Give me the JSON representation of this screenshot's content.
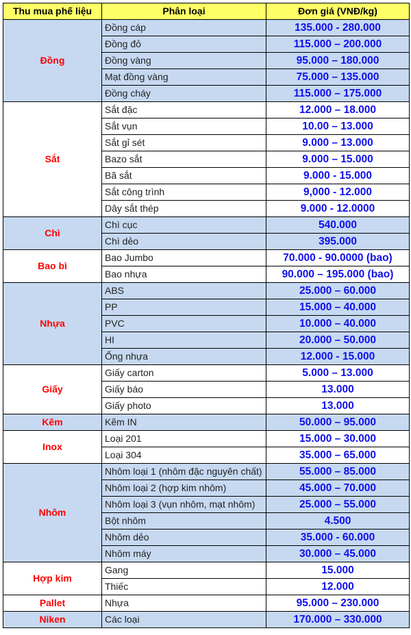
{
  "header": {
    "col1": "Thu mua phế liệu",
    "col2": "Phân loại",
    "col3": "Đơn giá (VNĐ/kg)"
  },
  "colors": {
    "header_bg": "#ffff66",
    "blue_row_bg": "#c6d9f1",
    "group_text": "#ff0000",
    "price_text": "#1010ee"
  },
  "groups": [
    {
      "name": "Đồng",
      "shaded": true,
      "items": [
        {
          "kind": "Đồng cáp",
          "price": "135.000 - 280.000"
        },
        {
          "kind": "Đồng đỏ",
          "price": "115.000 – 200.000"
        },
        {
          "kind": "Đồng vàng",
          "price": "95.000 – 180.000"
        },
        {
          "kind": "Mạt đồng vàng",
          "price": "75.000 – 135.000"
        },
        {
          "kind": "Đồng cháy",
          "price": "115.000 – 175.000"
        }
      ]
    },
    {
      "name": "Sắt",
      "shaded": false,
      "items": [
        {
          "kind": "Sắt đặc",
          "price": "12.000 – 18.000"
        },
        {
          "kind": "Sắt vụn",
          "price": "10.00 – 13.000"
        },
        {
          "kind": "Sắt gỉ sét",
          "price": "9.000 – 13.000"
        },
        {
          "kind": "Bazo sắt",
          "price": "9.000 – 15.000"
        },
        {
          "kind": "Bã sắt",
          "price": "9.000 - 15.000"
        },
        {
          "kind": "Sắt công trình",
          "price": "9,000 - 12.000"
        },
        {
          "kind": "Dây sắt thép",
          "price": "9.000 - 12.0000"
        }
      ]
    },
    {
      "name": "Chì",
      "shaded": true,
      "items": [
        {
          "kind": "Chì cục",
          "price": "540.000"
        },
        {
          "kind": "Chì dẻo",
          "price": "395.000"
        }
      ]
    },
    {
      "name": "Bao bì",
      "shaded": false,
      "items": [
        {
          "kind": "Bao Jumbo",
          "price": "70.000 - 90.0000 (bao)"
        },
        {
          "kind": "Bao nhựa",
          "price": "90.000 – 195.000 (bao)"
        }
      ]
    },
    {
      "name": "Nhựa",
      "shaded": true,
      "items": [
        {
          "kind": "ABS",
          "price": "25.000 – 60.000"
        },
        {
          "kind": "PP",
          "price": "15.000 – 40.000"
        },
        {
          "kind": "PVC",
          "price": "10.000 – 40.000"
        },
        {
          "kind": "HI",
          "price": "20.000 – 50.000"
        },
        {
          "kind": "Ống nhựa",
          "price": "12.000 - 15.000"
        }
      ]
    },
    {
      "name": "Giấy",
      "shaded": false,
      "items": [
        {
          "kind": "Giấy carton",
          "price": "5.000 – 13.000"
        },
        {
          "kind": "Giấy báo",
          "price": "13.000"
        },
        {
          "kind": "Giấy photo",
          "price": "13.000"
        }
      ]
    },
    {
      "name": "Kẽm",
      "shaded": true,
      "items": [
        {
          "kind": "Kẽm IN",
          "price": "50.000 – 95.000"
        }
      ]
    },
    {
      "name": "Inox",
      "shaded": false,
      "items": [
        {
          "kind": "Loại 201",
          "price": "15.000 – 30.000"
        },
        {
          "kind": "Loại 304",
          "price": "35.000 – 65.000"
        }
      ]
    },
    {
      "name": "Nhôm",
      "shaded": true,
      "items": [
        {
          "kind": "Nhôm loại 1 (nhôm đặc nguyên chất)",
          "price": "55.000 – 85.000"
        },
        {
          "kind": "Nhôm loại 2 (hợp kim nhôm)",
          "price": "45.000 – 70.000"
        },
        {
          "kind": "Nhôm loại 3 (vụn nhôm, mạt nhôm)",
          "price": "25.000 – 55.000"
        },
        {
          "kind": "Bột nhôm",
          "price": "4.500"
        },
        {
          "kind": "Nhôm dẻo",
          "price": "35.000 - 60.000"
        },
        {
          "kind": "Nhôm máy",
          "price": "30.000 – 45.000"
        }
      ]
    },
    {
      "name": "Hợp kim",
      "shaded": false,
      "items": [
        {
          "kind": "Gang",
          "price": "15.000"
        },
        {
          "kind": "Thiếc",
          "price": "12.000"
        }
      ]
    },
    {
      "name": "Pallet",
      "shaded": false,
      "items": [
        {
          "kind": "Nhựa",
          "price": "95.000 – 230.000"
        }
      ]
    },
    {
      "name": "Niken",
      "shaded": true,
      "items": [
        {
          "kind": "Các loại",
          "price": "170.000 – 330.000"
        }
      ]
    }
  ]
}
